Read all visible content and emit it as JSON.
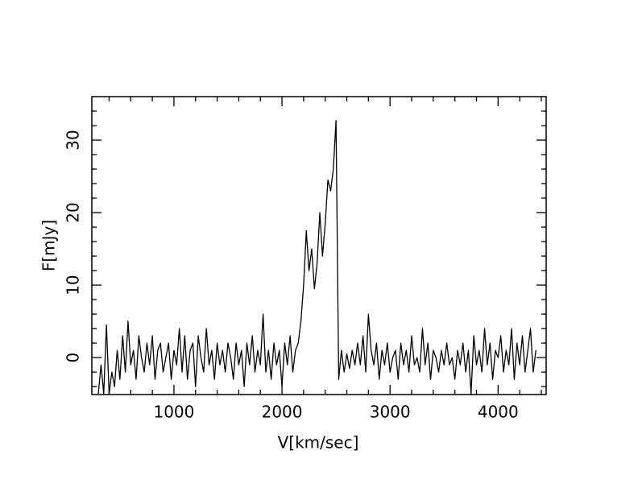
{
  "chart_data": {
    "type": "line",
    "xlabel": "V[km/sec]",
    "ylabel": "F[mJy]",
    "xlim": [
      240,
      4445
    ],
    "ylim": [
      -5.1,
      36
    ],
    "xticks": [
      1000,
      2000,
      3000,
      4000
    ],
    "yticks": [
      0,
      10,
      20,
      30
    ],
    "xminorticks": [
      400,
      600,
      800,
      1200,
      1400,
      1600,
      1800,
      2200,
      2400,
      2600,
      2800,
      3200,
      3400,
      3600,
      3800,
      4200,
      4400
    ],
    "yminorticks": [
      -4,
      -2,
      2,
      4,
      6,
      8,
      12,
      14,
      16,
      18,
      22,
      24,
      26,
      28,
      32,
      34
    ],
    "x": [
      300,
      325,
      350,
      375,
      400,
      425,
      450,
      475,
      500,
      525,
      550,
      575,
      600,
      625,
      650,
      675,
      700,
      725,
      750,
      775,
      800,
      825,
      850,
      875,
      900,
      925,
      950,
      975,
      1000,
      1025,
      1050,
      1075,
      1100,
      1125,
      1150,
      1175,
      1200,
      1225,
      1250,
      1275,
      1300,
      1325,
      1350,
      1375,
      1400,
      1425,
      1450,
      1475,
      1500,
      1525,
      1550,
      1575,
      1600,
      1625,
      1650,
      1675,
      1700,
      1725,
      1750,
      1775,
      1800,
      1825,
      1850,
      1875,
      1900,
      1925,
      1950,
      1975,
      2000,
      2025,
      2050,
      2075,
      2100,
      2125,
      2150,
      2175,
      2200,
      2225,
      2250,
      2275,
      2300,
      2325,
      2350,
      2375,
      2400,
      2425,
      2450,
      2475,
      2500,
      2525,
      2550,
      2575,
      2600,
      2625,
      2650,
      2675,
      2700,
      2725,
      2750,
      2775,
      2800,
      2825,
      2850,
      2875,
      2900,
      2925,
      2950,
      2975,
      3000,
      3025,
      3050,
      3075,
      3100,
      3125,
      3150,
      3175,
      3200,
      3225,
      3250,
      3275,
      3300,
      3325,
      3350,
      3375,
      3400,
      3425,
      3450,
      3475,
      3500,
      3525,
      3550,
      3575,
      3600,
      3625,
      3650,
      3675,
      3700,
      3725,
      3750,
      3775,
      3800,
      3825,
      3850,
      3875,
      3900,
      3925,
      3950,
      3975,
      4000,
      4025,
      4050,
      4075,
      4100,
      4125,
      4150,
      4175,
      4200,
      4225,
      4250,
      4275,
      4300,
      4325,
      4350
    ],
    "series": [
      {
        "color": "#000000",
        "values": [
          -5,
          -1,
          -5,
          4.5,
          -5,
          -2,
          -4,
          1,
          -3,
          3,
          -2,
          5,
          -1,
          1,
          -3,
          3,
          0,
          -2,
          2,
          -1,
          3,
          -3,
          1,
          2,
          -2,
          0,
          2,
          -3,
          1,
          -1,
          4,
          -2,
          3,
          -3,
          1,
          2,
          -4,
          3,
          0,
          -2,
          4,
          -1,
          1,
          -3,
          2,
          -1,
          1,
          -2,
          2,
          0,
          -3,
          2,
          -1,
          1,
          -4,
          2,
          -1,
          3,
          -2,
          1,
          -1,
          6,
          -2,
          1,
          -3,
          2,
          -1,
          1,
          -4,
          2,
          -1,
          3,
          -2,
          1,
          2,
          5,
          10,
          17.5,
          12,
          15,
          9.5,
          13,
          20,
          14,
          18.5,
          24.5,
          23,
          26,
          32.7,
          -3,
          1,
          -2,
          0.5,
          -1.5,
          1,
          -1,
          2,
          -1,
          3,
          -2,
          6,
          1,
          -1,
          2,
          -3,
          1,
          -1,
          2,
          -2,
          0,
          1,
          -3,
          2,
          -1,
          1,
          -2,
          3,
          -1,
          0,
          -2,
          4,
          -1,
          2,
          -3,
          1,
          0,
          -2,
          1,
          -1,
          2,
          -1,
          0,
          -3,
          1,
          -1,
          2,
          -2,
          1,
          -5,
          3,
          -1,
          1,
          -2,
          4,
          -1,
          2,
          -3,
          1,
          0,
          3,
          -2,
          1,
          -1,
          4,
          -3,
          2,
          -1,
          3,
          -2,
          1,
          4,
          -2,
          1
        ]
      }
    ]
  }
}
